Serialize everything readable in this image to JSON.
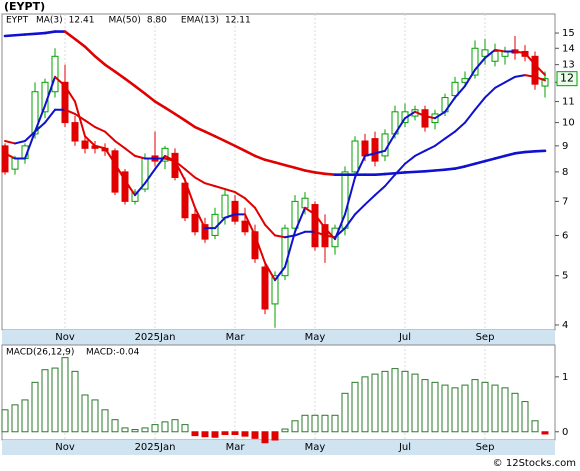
{
  "chart_data": [
    {
      "type": "candlestick",
      "title": "(EYPT)",
      "symbol": "EYPT",
      "price_label": "12",
      "categories": [
        null,
        null,
        null,
        null,
        null,
        null,
        "Nov",
        null,
        null,
        null,
        null,
        null,
        null,
        null,
        null,
        "2025Jan",
        null,
        null,
        null,
        null,
        null,
        null,
        null,
        "Mar",
        null,
        null,
        null,
        null,
        null,
        null,
        null,
        "May",
        null,
        null,
        null,
        null,
        null,
        null,
        null,
        null,
        "Jul",
        null,
        null,
        null,
        null,
        null,
        null,
        null,
        "Sep",
        null,
        null,
        null,
        null,
        null,
        null
      ],
      "open": [
        9.0,
        8.1,
        8.5,
        9.5,
        10.5,
        11.5,
        12.0,
        10.0,
        9.2,
        9.0,
        8.9,
        8.8,
        8.0,
        7.0,
        7.4,
        8.6,
        8.4,
        8.7,
        7.6,
        6.6,
        6.3,
        6.0,
        6.5,
        7.0,
        6.4,
        6.1,
        5.2,
        4.4,
        5.0,
        6.2,
        6.8,
        6.9,
        6.3,
        5.7,
        6.2,
        8.0,
        9.2,
        9.3,
        8.6,
        9.5,
        10.0,
        10.3,
        10.6,
        10.0,
        10.5,
        11.3,
        12.0,
        12.4,
        13.5,
        13.2,
        13.5,
        13.9,
        13.8,
        13.5,
        11.8
      ],
      "high": [
        9.1,
        8.6,
        9.1,
        12.0,
        12.2,
        14.0,
        13.0,
        10.3,
        9.5,
        9.2,
        9.1,
        8.9,
        8.1,
        7.4,
        8.7,
        9.6,
        9.0,
        8.9,
        7.8,
        6.8,
        6.5,
        6.8,
        7.4,
        7.2,
        6.8,
        6.3,
        5.3,
        5.1,
        6.3,
        7.2,
        7.3,
        7.0,
        6.6,
        6.3,
        8.2,
        9.4,
        9.5,
        9.6,
        9.7,
        10.8,
        10.9,
        10.8,
        10.8,
        10.6,
        11.4,
        12.3,
        12.6,
        14.5,
        14.6,
        14.3,
        14.1,
        14.8,
        14.2,
        13.8,
        12.6
      ],
      "low": [
        7.9,
        7.9,
        8.3,
        9.3,
        10.2,
        11.2,
        9.8,
        9.0,
        8.7,
        8.7,
        8.6,
        7.2,
        6.9,
        6.9,
        7.3,
        8.2,
        8.1,
        7.7,
        6.4,
        6.0,
        5.8,
        5.9,
        6.3,
        6.3,
        6.0,
        5.3,
        4.2,
        3.95,
        4.9,
        6.0,
        6.6,
        5.6,
        5.3,
        5.5,
        6.0,
        7.9,
        8.4,
        8.2,
        8.4,
        9.3,
        9.8,
        10.1,
        9.6,
        9.7,
        10.3,
        11.1,
        11.8,
        12.2,
        13.0,
        12.9,
        13.0,
        13.3,
        13.2,
        11.6,
        11.2
      ],
      "close": [
        8.0,
        8.5,
        9.0,
        11.5,
        12.0,
        13.5,
        10.0,
        9.2,
        8.9,
        8.9,
        8.8,
        7.3,
        7.0,
        7.3,
        8.5,
        8.4,
        8.9,
        7.8,
        6.5,
        6.1,
        5.9,
        6.6,
        7.2,
        6.4,
        6.1,
        5.4,
        4.3,
        5.0,
        6.2,
        7.0,
        7.1,
        5.7,
        5.7,
        6.2,
        8.0,
        9.2,
        8.6,
        8.4,
        9.5,
        10.5,
        10.5,
        10.6,
        9.8,
        10.4,
        11.2,
        12.0,
        12.2,
        14.0,
        13.9,
        13.8,
        13.8,
        13.7,
        13.5,
        11.9,
        12.2
      ],
      "up_color": "#00a000",
      "down_color": "#e00000",
      "series": [
        {
          "name": "MA(3)",
          "last": "12.41",
          "color": "#1010d0",
          "width": 2,
          "values": [
            8.7,
            8.5,
            8.5,
            9.6,
            10.8,
            12.3,
            11.8,
            11.0,
            9.4,
            9.0,
            8.9,
            8.3,
            7.7,
            7.2,
            7.6,
            8.1,
            8.6,
            8.4,
            7.7,
            6.8,
            6.2,
            6.2,
            6.5,
            6.6,
            6.6,
            6.0,
            5.3,
            4.9,
            5.2,
            6.1,
            6.8,
            6.6,
            6.2,
            5.9,
            6.6,
            7.8,
            8.6,
            8.7,
            8.8,
            9.5,
            10.2,
            10.5,
            10.3,
            10.2,
            10.5,
            11.2,
            11.8,
            12.7,
            13.4,
            13.9,
            13.8,
            13.8,
            13.7,
            13.0,
            12.41
          ]
        },
        {
          "name": "MA(50)",
          "last": "8.80",
          "color": "#1010d0",
          "width": 2.6,
          "values": [
            14.8,
            14.85,
            14.9,
            14.95,
            15.0,
            15.1,
            15.1,
            14.6,
            14.1,
            13.5,
            13.0,
            12.6,
            12.2,
            11.8,
            11.4,
            11.0,
            10.7,
            10.4,
            10.1,
            9.8,
            9.6,
            9.4,
            9.2,
            9.0,
            8.8,
            8.6,
            8.45,
            8.35,
            8.25,
            8.15,
            8.05,
            7.98,
            7.93,
            7.9,
            7.9,
            7.9,
            7.9,
            7.9,
            7.92,
            7.95,
            7.98,
            8.0,
            8.02,
            8.05,
            8.08,
            8.12,
            8.2,
            8.3,
            8.4,
            8.5,
            8.6,
            8.7,
            8.75,
            8.78,
            8.8
          ]
        },
        {
          "name": "EMA(13)",
          "last": "12.11",
          "color": "#e00000",
          "width": 2,
          "values": [
            9.2,
            9.1,
            9.2,
            9.6,
            10.0,
            10.6,
            10.6,
            10.4,
            10.1,
            9.8,
            9.6,
            9.2,
            8.9,
            8.6,
            8.5,
            8.5,
            8.5,
            8.4,
            8.1,
            7.8,
            7.6,
            7.5,
            7.4,
            7.3,
            7.1,
            6.8,
            6.3,
            6.0,
            5.95,
            6.0,
            6.1,
            6.1,
            6.0,
            5.95,
            6.2,
            6.6,
            6.9,
            7.2,
            7.5,
            7.9,
            8.3,
            8.6,
            8.8,
            9.0,
            9.3,
            9.6,
            10.0,
            10.6,
            11.2,
            11.7,
            12.0,
            12.3,
            12.4,
            12.3,
            12.11
          ]
        }
      ],
      "line_up_color": "#1010d0",
      "line_down_color": "#e00000",
      "log_scale": true,
      "ylim": [
        3.91,
        16.35
      ],
      "yticks": [
        4,
        5,
        6,
        7,
        8,
        9,
        10,
        11,
        12,
        13,
        14,
        15
      ],
      "grid": "x"
    },
    {
      "type": "bar",
      "title": "MACD(26,12,9)",
      "subtitle": "MACD:-0.04",
      "categories": [
        null,
        null,
        null,
        null,
        null,
        null,
        "Nov",
        null,
        null,
        null,
        null,
        null,
        null,
        null,
        null,
        "2025Jan",
        null,
        null,
        null,
        null,
        null,
        null,
        null,
        "Mar",
        null,
        null,
        null,
        null,
        null,
        null,
        null,
        "May",
        null,
        null,
        null,
        null,
        null,
        null,
        null,
        null,
        "Jul",
        null,
        null,
        null,
        null,
        null,
        null,
        null,
        "Sep",
        null,
        null,
        null,
        null,
        null,
        null
      ],
      "values": [
        0.4,
        0.49,
        0.58,
        0.9,
        1.13,
        1.16,
        1.35,
        1.1,
        0.67,
        0.58,
        0.4,
        0.22,
        0.07,
        0.04,
        0.07,
        0.13,
        0.18,
        0.22,
        0.13,
        -0.07,
        -0.09,
        -0.1,
        -0.05,
        -0.05,
        -0.08,
        -0.12,
        -0.2,
        -0.15,
        0.05,
        0.2,
        0.3,
        0.3,
        0.3,
        0.3,
        0.7,
        0.9,
        1.0,
        1.05,
        1.1,
        1.15,
        1.1,
        1.05,
        0.95,
        0.9,
        0.85,
        0.8,
        0.85,
        0.95,
        0.9,
        0.85,
        0.8,
        0.7,
        0.55,
        0.2,
        -0.04
      ],
      "up_color": "#2a7a2a",
      "down_color": "#e00000",
      "ylim": [
        -0.15,
        1.58
      ],
      "yticks": [
        0,
        1
      ],
      "grid": "x"
    }
  ],
  "footer": "© 12Stocks.com"
}
